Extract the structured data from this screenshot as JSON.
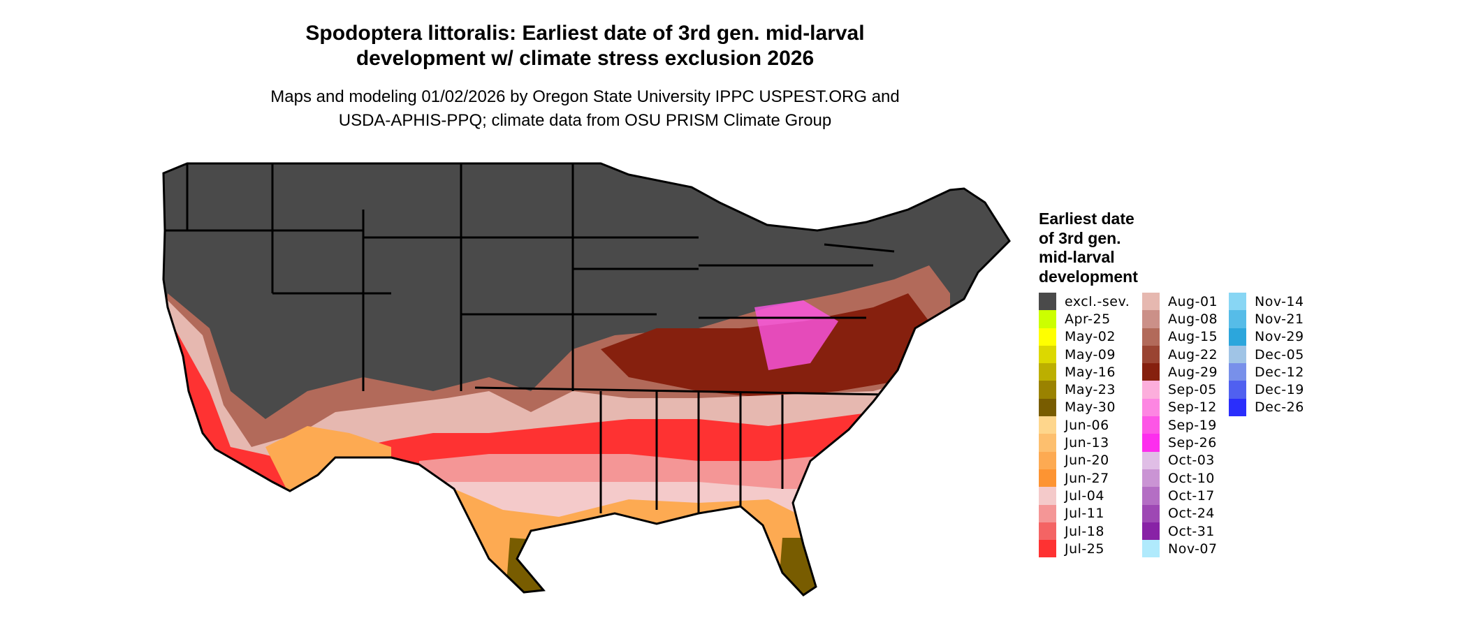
{
  "title": [
    "Spodoptera littoralis: Earliest date of 3rd gen. mid-larval",
    "development w/ climate stress exclusion 2026"
  ],
  "subtitle": [
    "Maps and modeling 01/02/2026 by Oregon State University IPPC USPEST.ORG and",
    "USDA-APHIS-PPQ; climate data from OSU PRISM Climate Group"
  ],
  "legend": {
    "title": [
      "Earliest date",
      "of 3rd gen.",
      "mid-larval",
      "development"
    ],
    "columns": [
      [
        {
          "label": "excl.-sev.",
          "color": "#4a4a4a"
        },
        {
          "label": "Apr-25",
          "color": "#ccff00"
        },
        {
          "label": "May-02",
          "color": "#ffff00"
        },
        {
          "label": "May-09",
          "color": "#dcd800"
        },
        {
          "label": "May-16",
          "color": "#bcaf00"
        },
        {
          "label": "May-23",
          "color": "#9a8200"
        },
        {
          "label": "May-30",
          "color": "#785c00"
        },
        {
          "label": "Jun-06",
          "color": "#fed68c"
        },
        {
          "label": "Jun-13",
          "color": "#fdbf6e"
        },
        {
          "label": "Jun-20",
          "color": "#fdaa52"
        },
        {
          "label": "Jun-27",
          "color": "#fd9432"
        },
        {
          "label": "Jul-04",
          "color": "#f4caca"
        },
        {
          "label": "Jul-11",
          "color": "#f49696"
        },
        {
          "label": "Jul-18",
          "color": "#f46464"
        },
        {
          "label": "Jul-25",
          "color": "#fe3232"
        }
      ],
      [
        {
          "label": "Aug-01",
          "color": "#e6b8b0"
        },
        {
          "label": "Aug-08",
          "color": "#cb9088"
        },
        {
          "label": "Aug-15",
          "color": "#b26a5a"
        },
        {
          "label": "Aug-22",
          "color": "#9a4432"
        },
        {
          "label": "Aug-29",
          "color": "#86200e"
        },
        {
          "label": "Sep-05",
          "color": "#fcaedc"
        },
        {
          "label": "Sep-12",
          "color": "#fd86e2"
        },
        {
          "label": "Sep-19",
          "color": "#fd56e6"
        },
        {
          "label": "Sep-26",
          "color": "#fd2eee"
        },
        {
          "label": "Oct-03",
          "color": "#e0bee6"
        },
        {
          "label": "Oct-10",
          "color": "#ca94d4"
        },
        {
          "label": "Oct-17",
          "color": "#b46ec4"
        },
        {
          "label": "Oct-24",
          "color": "#9e48b4"
        },
        {
          "label": "Oct-31",
          "color": "#8822a6"
        },
        {
          "label": "Nov-07",
          "color": "#b0eafc"
        }
      ],
      [
        {
          "label": "Nov-14",
          "color": "#88d6f4"
        },
        {
          "label": "Nov-21",
          "color": "#56bce8"
        },
        {
          "label": "Nov-29",
          "color": "#2ca6dc"
        },
        {
          "label": "Dec-05",
          "color": "#a0c4e6"
        },
        {
          "label": "Dec-12",
          "color": "#7890ea"
        },
        {
          "label": "Dec-19",
          "color": "#5060f0"
        },
        {
          "label": "Dec-26",
          "color": "#2a2efc"
        }
      ]
    ]
  }
}
